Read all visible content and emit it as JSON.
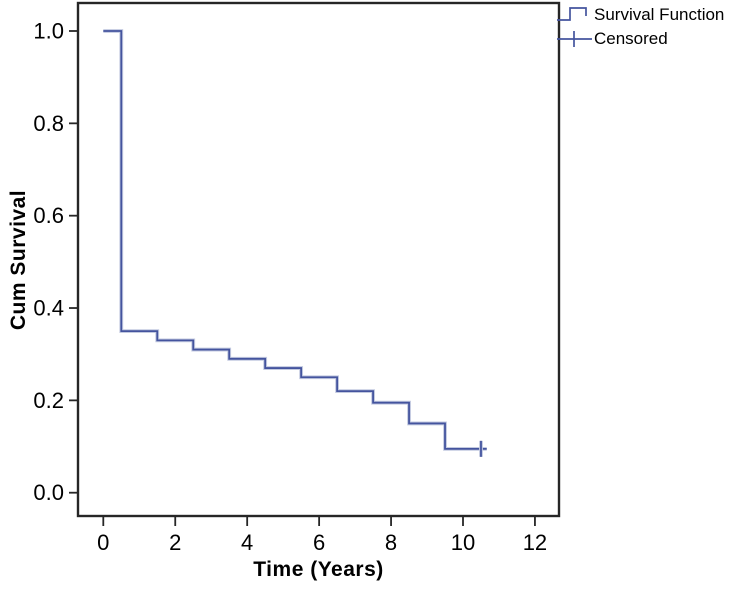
{
  "chart_data": {
    "type": "line",
    "variant": "kaplan-meier-step",
    "title": "",
    "xlabel": "Time (Years)",
    "ylabel": "Cum Survival",
    "xlim": [
      -0.7,
      12.65
    ],
    "ylim": [
      -0.05,
      1.06
    ],
    "grid": false,
    "x_ticks": {
      "values": [
        0,
        2,
        4,
        6,
        8,
        10,
        12
      ],
      "labels": [
        "0",
        "2",
        "4",
        "6",
        "8",
        "10",
        "12"
      ]
    },
    "y_ticks": {
      "values": [
        0.0,
        0.2,
        0.4,
        0.6,
        0.8,
        1.0
      ],
      "labels": [
        "0.0",
        "0.2",
        "0.4",
        "0.6",
        "0.8",
        "1.0"
      ]
    },
    "legend": {
      "position": "top-right-outside",
      "entries": [
        {
          "label": "Survival Function",
          "marker": "step-line"
        },
        {
          "label": "Censored",
          "marker": "plus"
        }
      ]
    },
    "series": [
      {
        "name": "Survival Function",
        "type": "step",
        "points": [
          [
            0,
            1.0
          ],
          [
            0.5,
            0.35
          ],
          [
            1.5,
            0.33
          ],
          [
            2.5,
            0.31
          ],
          [
            3.5,
            0.29
          ],
          [
            4.5,
            0.27
          ],
          [
            5.5,
            0.25
          ],
          [
            6.5,
            0.22
          ],
          [
            7.5,
            0.195
          ],
          [
            8.5,
            0.15
          ],
          [
            9.5,
            0.095
          ]
        ],
        "end_time": 10.66
      }
    ],
    "censored_points": [
      [
        10.5,
        0.095
      ]
    ]
  },
  "colors": {
    "line": "#44549E",
    "line_halo": "#C3CAE0",
    "axis": "#262626",
    "text": "#000000",
    "background": "#FFFFFF"
  }
}
